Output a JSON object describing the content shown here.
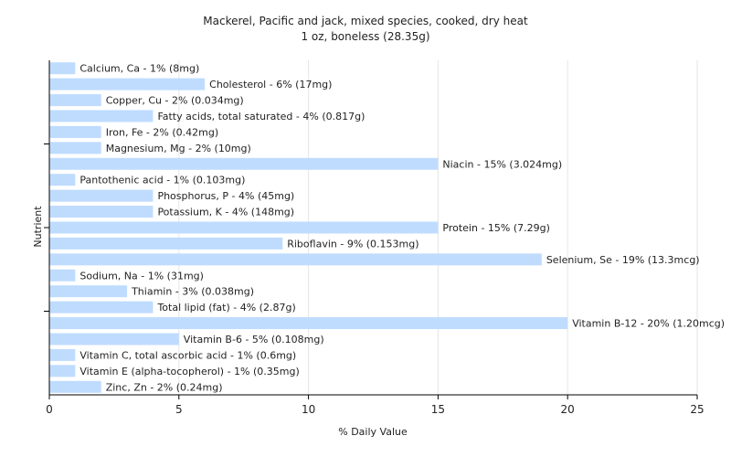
{
  "chart_data": {
    "type": "bar",
    "orientation": "horizontal",
    "title": "Mackerel, Pacific and jack, mixed species, cooked, dry heat",
    "subtitle": "1 oz, boneless (28.35g)",
    "xlabel": "% Daily Value",
    "ylabel": "Nutrient",
    "xlim": [
      0,
      25
    ],
    "xticks": [
      0,
      5,
      10,
      15,
      20,
      25
    ],
    "grid": true,
    "bar_color": "#bfdcff",
    "categories": [
      "Calcium, Ca",
      "Cholesterol",
      "Copper, Cu",
      "Fatty acids, total saturated",
      "Iron, Fe",
      "Magnesium, Mg",
      "Niacin",
      "Pantothenic acid",
      "Phosphorus, P",
      "Potassium, K",
      "Protein",
      "Riboflavin",
      "Selenium, Se",
      "Sodium, Na",
      "Thiamin",
      "Total lipid (fat)",
      "Vitamin B-12",
      "Vitamin B-6",
      "Vitamin C, total ascorbic acid",
      "Vitamin E (alpha-tocopherol)",
      "Zinc, Zn"
    ],
    "values": [
      1,
      6,
      2,
      4,
      2,
      2,
      15,
      1,
      4,
      4,
      15,
      9,
      19,
      1,
      3,
      4,
      20,
      5,
      1,
      1,
      2
    ],
    "labels": [
      "Calcium, Ca - 1% (8mg)",
      "Cholesterol - 6% (17mg)",
      "Copper, Cu - 2% (0.034mg)",
      "Fatty acids, total saturated - 4% (0.817g)",
      "Iron, Fe - 2% (0.42mg)",
      "Magnesium, Mg - 2% (10mg)",
      "Niacin - 15% (3.024mg)",
      "Pantothenic acid - 1% (0.103mg)",
      "Phosphorus, P - 4% (45mg)",
      "Potassium, K - 4% (148mg)",
      "Protein - 15% (7.29g)",
      "Riboflavin - 9% (0.153mg)",
      "Selenium, Se - 19% (13.3mcg)",
      "Sodium, Na - 1% (31mg)",
      "Thiamin - 3% (0.038mg)",
      "Total lipid (fat) - 4% (2.87g)",
      "Vitamin B-12 - 20% (1.20mcg)",
      "Vitamin B-6 - 5% (0.108mg)",
      "Vitamin C, total ascorbic acid - 1% (0.6mg)",
      "Vitamin E (alpha-tocopherol) - 1% (0.35mg)",
      "Zinc, Zn - 2% (0.24mg)"
    ]
  }
}
